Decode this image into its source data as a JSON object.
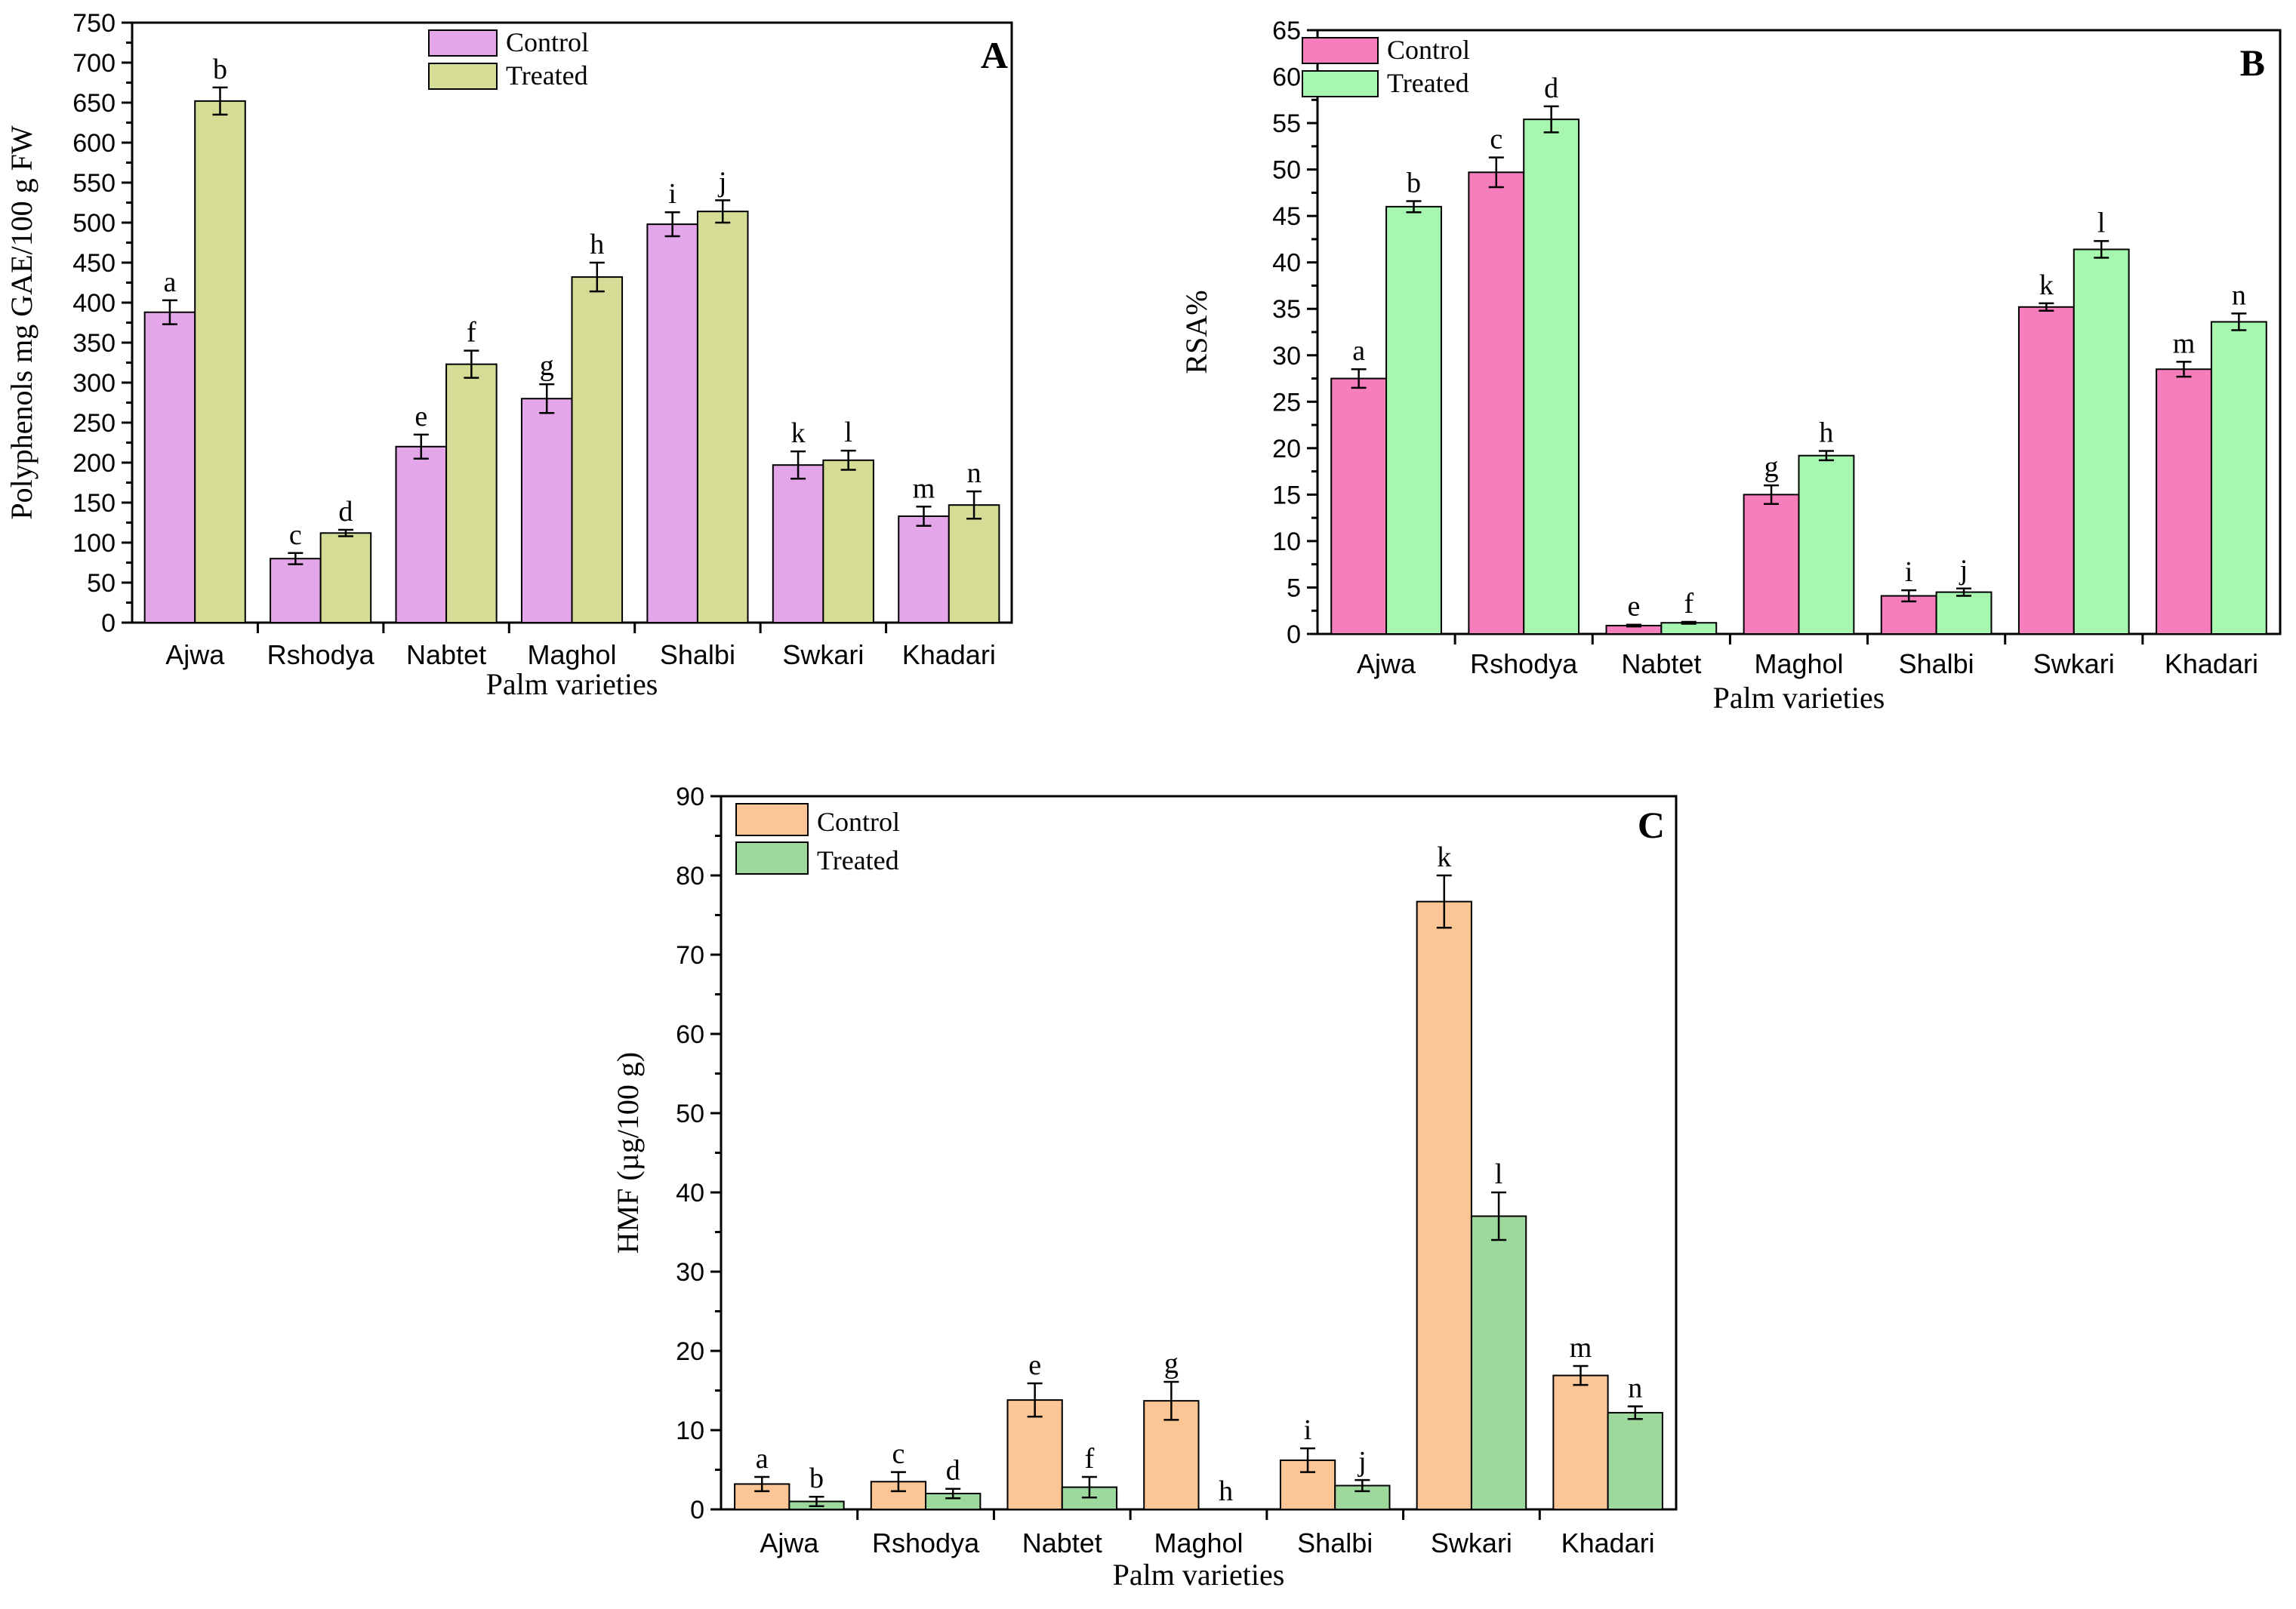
{
  "colors": {
    "A_control": "#e3a6e8",
    "A_treated": "#d4dc96",
    "B_control": "#f77ebd",
    "B_treated": "#a8f7b0",
    "C_control": "#fbc595",
    "C_treated": "#9dd89c"
  },
  "chart_data": [
    {
      "id": "A",
      "type": "bar",
      "panel_label": "A",
      "xlabel": "Palm varieties",
      "ylabel": "Polyphenols mg GAE/100 g FW",
      "ylim": [
        0,
        750
      ],
      "yticks": [
        0,
        50,
        100,
        150,
        200,
        250,
        300,
        350,
        400,
        450,
        500,
        550,
        600,
        650,
        700,
        750
      ],
      "legend_position": "top-center",
      "categories": [
        "Ajwa",
        "Rshodya",
        "Nabtet",
        "Maghol",
        "Shalbi",
        "Swkari",
        "Khadari"
      ],
      "series": [
        {
          "name": "Control",
          "values": [
            388,
            80,
            220,
            280,
            498,
            197,
            133
          ],
          "errors": [
            15,
            7,
            15,
            18,
            15,
            17,
            12
          ],
          "labels": [
            "a",
            "c",
            "e",
            "g",
            "i",
            "k",
            "m"
          ]
        },
        {
          "name": "Treated",
          "values": [
            652,
            112,
            323,
            432,
            514,
            203,
            147
          ],
          "errors": [
            17,
            4,
            17,
            18,
            14,
            12,
            17
          ],
          "labels": [
            "b",
            "d",
            "f",
            "h",
            "j",
            "l",
            "n"
          ]
        }
      ]
    },
    {
      "id": "B",
      "type": "bar",
      "panel_label": "B",
      "xlabel": "Palm varieties",
      "ylabel": "RSA%",
      "ylim": [
        0,
        65
      ],
      "yticks": [
        0,
        5,
        10,
        15,
        20,
        25,
        30,
        35,
        40,
        45,
        50,
        55,
        60,
        65
      ],
      "legend_position": "top-left",
      "categories": [
        "Ajwa",
        "Rshodya",
        "Nabtet",
        "Maghol",
        "Shalbi",
        "Swkari",
        "Khadari"
      ],
      "series": [
        {
          "name": "Control",
          "values": [
            27.5,
            49.7,
            0.9,
            15,
            4.1,
            35.2,
            28.5
          ],
          "errors": [
            1,
            1.6,
            0.1,
            1,
            0.6,
            0.4,
            0.8
          ],
          "labels": [
            "a",
            "c",
            "e",
            "g",
            "i",
            "k",
            "m"
          ]
        },
        {
          "name": "Treated",
          "values": [
            46,
            55.4,
            1.2,
            19.2,
            4.5,
            41.4,
            33.6
          ],
          "errors": [
            0.6,
            1.4,
            0.1,
            0.5,
            0.4,
            0.9,
            0.9
          ],
          "labels": [
            "b",
            "d",
            "f",
            "h",
            "j",
            "l",
            "n"
          ]
        }
      ]
    },
    {
      "id": "C",
      "type": "bar",
      "panel_label": "C",
      "xlabel": "Palm varieties",
      "ylabel": "HMF (µg/100 g)",
      "ylim": [
        0,
        90
      ],
      "yticks": [
        0,
        10,
        20,
        30,
        40,
        50,
        60,
        70,
        80,
        90
      ],
      "legend_position": "top-left",
      "categories": [
        "Ajwa",
        "Rshodya",
        "Nabtet",
        "Maghol",
        "Shalbi",
        "Swkari",
        "Khadari"
      ],
      "series": [
        {
          "name": "Control",
          "values": [
            3.2,
            3.5,
            13.8,
            13.7,
            6.2,
            76.7,
            16.9
          ],
          "errors": [
            0.9,
            1.2,
            2.1,
            2.4,
            1.5,
            3.3,
            1.2
          ],
          "labels": [
            "a",
            "c",
            "e",
            "g",
            "i",
            "k",
            "m"
          ]
        },
        {
          "name": "Treated",
          "values": [
            1.0,
            2.0,
            2.8,
            0,
            3.0,
            37.0,
            12.2
          ],
          "errors": [
            0.6,
            0.6,
            1.3,
            0,
            0.7,
            3.0,
            0.8
          ],
          "labels": [
            "b",
            "d",
            "f",
            "h",
            "j",
            "l",
            "n"
          ]
        }
      ]
    }
  ]
}
